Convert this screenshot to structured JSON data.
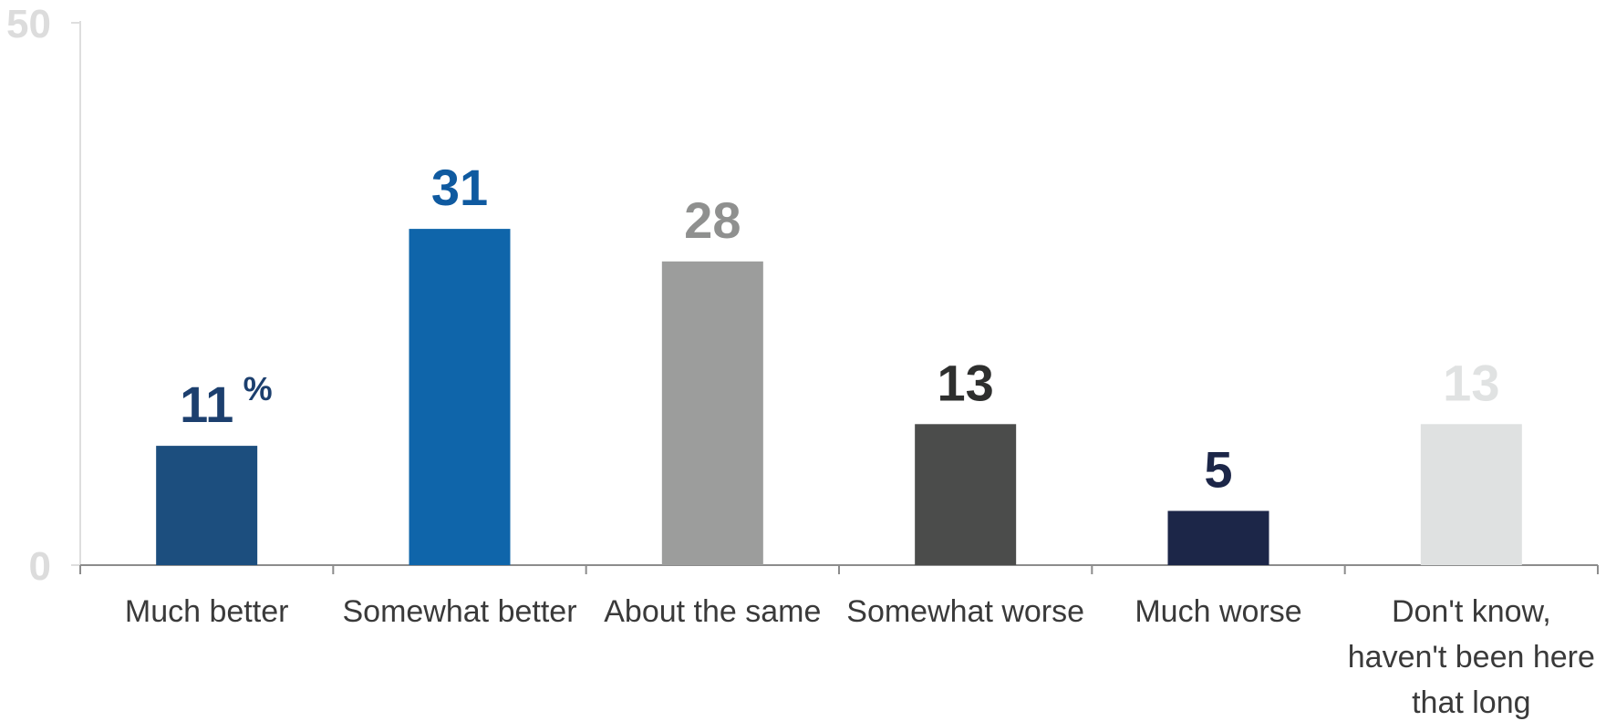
{
  "chart_data": {
    "type": "bar",
    "categories": [
      "Much better",
      "Somewhat better",
      "About the same",
      "Somewhat worse",
      "Much worse",
      "Don't know, haven't been here that long"
    ],
    "category_lines": [
      [
        "Much better"
      ],
      [
        "Somewhat better"
      ],
      [
        "About the same"
      ],
      [
        "Somewhat worse"
      ],
      [
        "Much worse"
      ],
      [
        "Don't know,",
        "haven't been here",
        "that long"
      ]
    ],
    "values": [
      11,
      31,
      28,
      13,
      5,
      13
    ],
    "value_labels": [
      "11",
      "31",
      "28",
      "13",
      "5",
      "13"
    ],
    "value_unit": "%",
    "colors": [
      "#1c4e7e",
      "#0f65aa",
      "#9c9d9c",
      "#4b4c4b",
      "#1c2648",
      "#dfe1e1"
    ],
    "label_colors": [
      "#1c3f6e",
      "#0f5aa0",
      "#8f908f",
      "#2e2f2e",
      "#1c2648",
      "#e0e2e2"
    ],
    "ylim": [
      0,
      50
    ],
    "yticks": [
      0,
      50
    ],
    "grid": false,
    "title": "",
    "xlabel": "",
    "ylabel": ""
  }
}
